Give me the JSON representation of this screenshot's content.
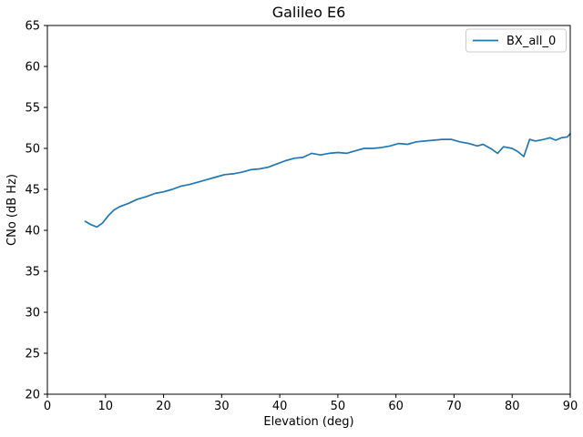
{
  "chart_data": {
    "type": "line",
    "title": "Galileo E6",
    "xlabel": "Elevation (deg)",
    "ylabel": "CNo (dB Hz)",
    "xlim": [
      0,
      90
    ],
    "ylim": [
      20,
      65
    ],
    "xticks": [
      0,
      10,
      20,
      30,
      40,
      50,
      60,
      70,
      80,
      90
    ],
    "yticks": [
      20,
      25,
      30,
      35,
      40,
      45,
      50,
      55,
      60,
      65
    ],
    "grid": false,
    "legend": {
      "position": "upper right",
      "entries": [
        "BX_all_0"
      ]
    },
    "colors": {
      "line": "#1f77b4",
      "frame": "#000000",
      "legend_border": "#cccccc",
      "background": "#ffffff"
    },
    "series": [
      {
        "name": "BX_all_0",
        "color": "#1f77b4",
        "points": [
          [
            6.5,
            41.1
          ],
          [
            7.5,
            40.7
          ],
          [
            8.5,
            40.4
          ],
          [
            9.5,
            40.9
          ],
          [
            10.5,
            41.8
          ],
          [
            11.5,
            42.5
          ],
          [
            12.5,
            42.9
          ],
          [
            14,
            43.3
          ],
          [
            15.5,
            43.8
          ],
          [
            17,
            44.1
          ],
          [
            18.5,
            44.5
          ],
          [
            20,
            44.7
          ],
          [
            21.5,
            45.0
          ],
          [
            23,
            45.4
          ],
          [
            24.5,
            45.6
          ],
          [
            26,
            45.9
          ],
          [
            27.5,
            46.2
          ],
          [
            29,
            46.5
          ],
          [
            30.5,
            46.8
          ],
          [
            32,
            46.9
          ],
          [
            33.5,
            47.1
          ],
          [
            35,
            47.4
          ],
          [
            36.5,
            47.5
          ],
          [
            38,
            47.7
          ],
          [
            39.5,
            48.1
          ],
          [
            41,
            48.5
          ],
          [
            42.5,
            48.8
          ],
          [
            44,
            48.9
          ],
          [
            45.5,
            49.4
          ],
          [
            47,
            49.2
          ],
          [
            48.5,
            49.4
          ],
          [
            50,
            49.5
          ],
          [
            51.5,
            49.4
          ],
          [
            53,
            49.7
          ],
          [
            54.5,
            50.0
          ],
          [
            56,
            50.0
          ],
          [
            57.5,
            50.1
          ],
          [
            59,
            50.3
          ],
          [
            60.5,
            50.6
          ],
          [
            62,
            50.5
          ],
          [
            63.5,
            50.8
          ],
          [
            65,
            50.9
          ],
          [
            66.5,
            51.0
          ],
          [
            68,
            51.1
          ],
          [
            69.5,
            51.1
          ],
          [
            71,
            50.8
          ],
          [
            72.5,
            50.6
          ],
          [
            74,
            50.3
          ],
          [
            75,
            50.5
          ],
          [
            76.5,
            49.9
          ],
          [
            77.5,
            49.4
          ],
          [
            78.5,
            50.2
          ],
          [
            80,
            50.0
          ],
          [
            81,
            49.6
          ],
          [
            82,
            49.0
          ],
          [
            83,
            51.1
          ],
          [
            84,
            50.9
          ],
          [
            85.5,
            51.1
          ],
          [
            86.5,
            51.3
          ],
          [
            87.5,
            51.0
          ],
          [
            88.5,
            51.3
          ],
          [
            89.5,
            51.4
          ],
          [
            90,
            51.8
          ]
        ]
      }
    ]
  }
}
